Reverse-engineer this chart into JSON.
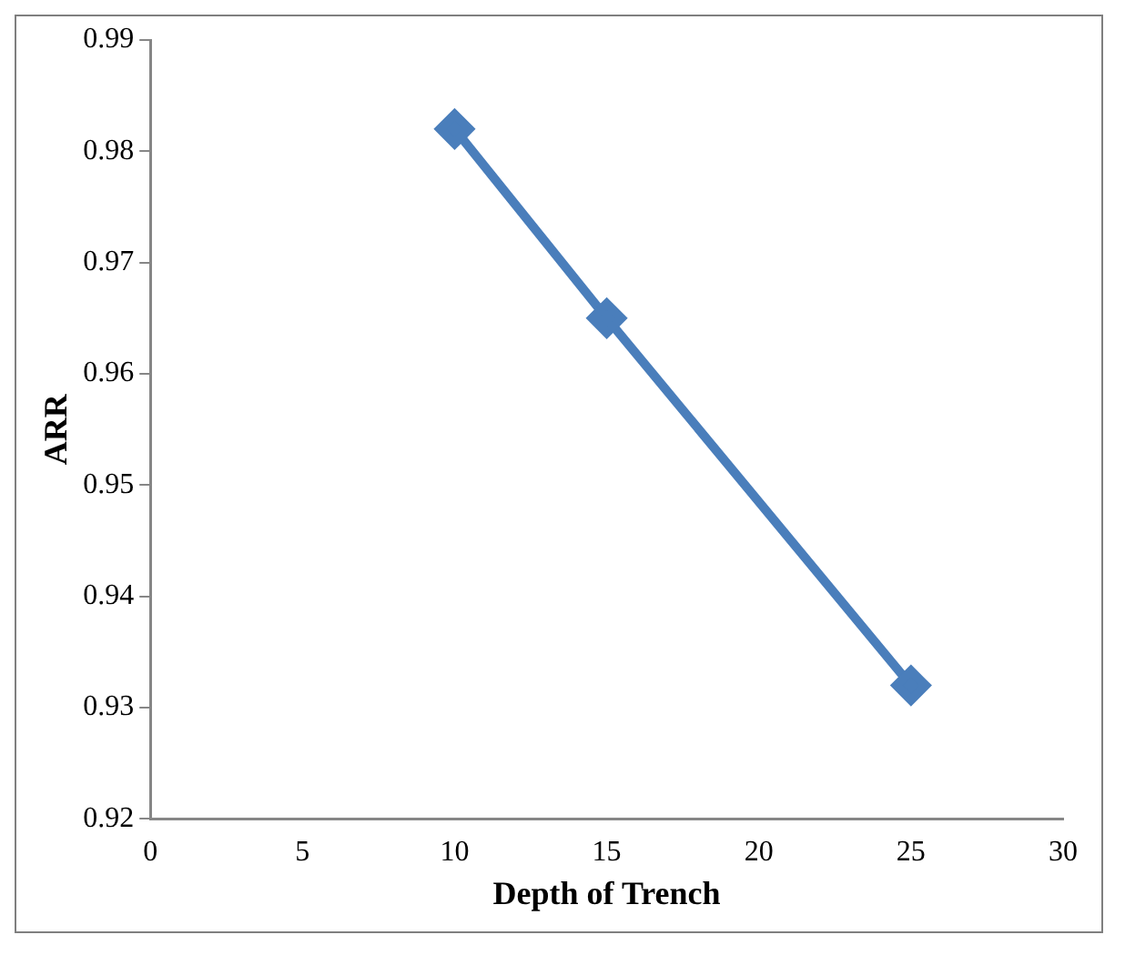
{
  "chart_data": {
    "type": "line",
    "xlabel": "Depth of Trench",
    "ylabel": "ARR",
    "x": [
      10,
      15,
      25
    ],
    "series": [
      {
        "color": "#4a7ebb",
        "values": [
          0.982,
          0.965,
          0.932
        ]
      }
    ],
    "xlim": [
      0,
      30
    ],
    "xticks": [
      0,
      5,
      10,
      15,
      20,
      25,
      30
    ],
    "ylim": [
      0.92,
      0.99
    ],
    "yticks": [
      0.92,
      0.93,
      0.94,
      0.95,
      0.96,
      0.97,
      0.98,
      0.99
    ],
    "grid": false,
    "legend": false,
    "marker": "diamond",
    "line_style": "solid"
  }
}
